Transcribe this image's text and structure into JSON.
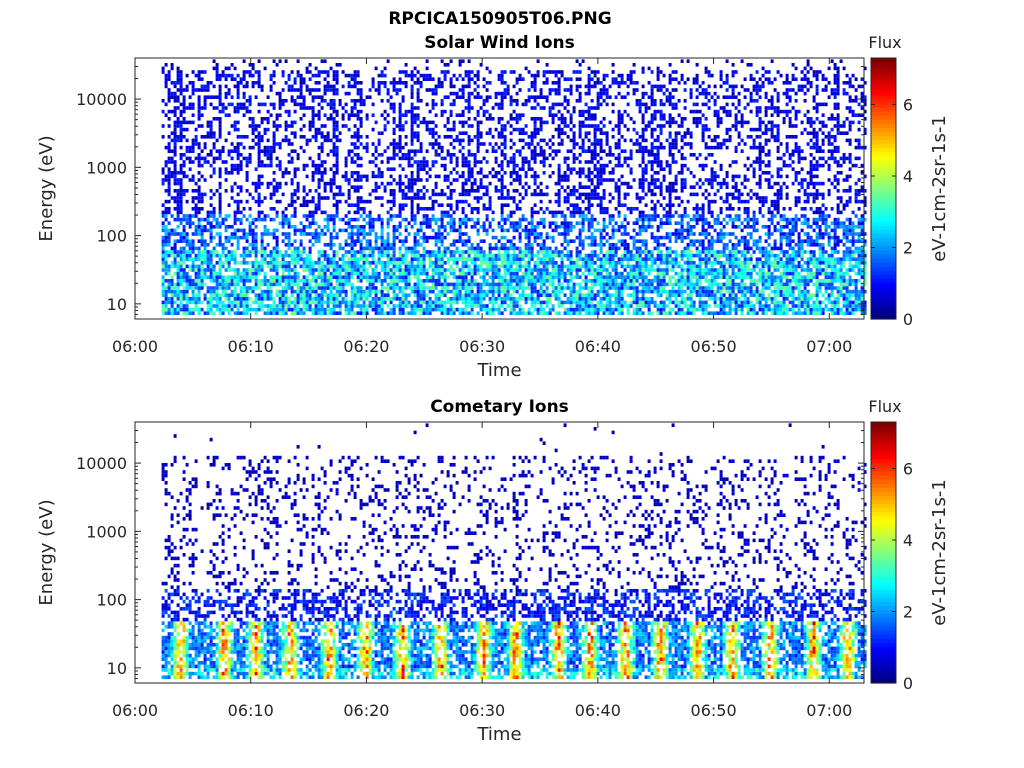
{
  "figure_title": "RPCICA150905T06.PNG",
  "chart_data": [
    {
      "type": "heatmap",
      "title": "Solar Wind Ions",
      "xlabel": "Time",
      "ylabel": "Energy (eV)",
      "x_ticks": [
        "06:00",
        "06:10",
        "06:20",
        "06:30",
        "06:40",
        "06:50",
        "07:00"
      ],
      "x_tick_minutes": [
        0,
        10,
        20,
        30,
        40,
        50,
        60
      ],
      "xlim_minutes": [
        0,
        63
      ],
      "data_x_range_minutes": [
        2.3,
        63
      ],
      "y_ticks": [
        "10",
        "100",
        "1000",
        "10000"
      ],
      "y_tick_values": [
        10,
        100,
        1000,
        10000
      ],
      "ylim": [
        6,
        40000
      ],
      "y_scale": "log",
      "colorbar": {
        "label": "Flux",
        "units": "eV-1cm-2sr-1s-1",
        "ticks": [
          "0",
          "2",
          "4",
          "6"
        ],
        "range": [
          0,
          7.3
        ],
        "colormap": "jet"
      },
      "description_pattern": "scattered low-level flux across 20-40000 eV, moderate flux bands below 60 eV"
    },
    {
      "type": "heatmap",
      "title": "Cometary Ions",
      "xlabel": "Time",
      "ylabel": "Energy (eV)",
      "x_ticks": [
        "06:00",
        "06:10",
        "06:20",
        "06:30",
        "06:40",
        "06:50",
        "07:00"
      ],
      "x_tick_minutes": [
        0,
        10,
        20,
        30,
        40,
        50,
        60
      ],
      "xlim_minutes": [
        0,
        63
      ],
      "data_x_range_minutes": [
        2.3,
        63
      ],
      "y_ticks": [
        "10",
        "100",
        "1000",
        "10000"
      ],
      "y_tick_values": [
        10,
        100,
        1000,
        10000
      ],
      "ylim": [
        6,
        40000
      ],
      "y_scale": "log",
      "colorbar": {
        "label": "Flux",
        "units": "eV-1cm-2sr-1s-1",
        "ticks": [
          "0",
          "2",
          "4",
          "6"
        ],
        "range": [
          0,
          7.3
        ],
        "colormap": "jet"
      },
      "peak_bursts_minutes": [
        3.8,
        7.6,
        10.3,
        13.3,
        16.7,
        19.8,
        23.0,
        26.3,
        30.0,
        32.8,
        36.5,
        39.2,
        42.3,
        45.3,
        48.5,
        51.5,
        54.8,
        58.5,
        61.5
      ]
    }
  ]
}
